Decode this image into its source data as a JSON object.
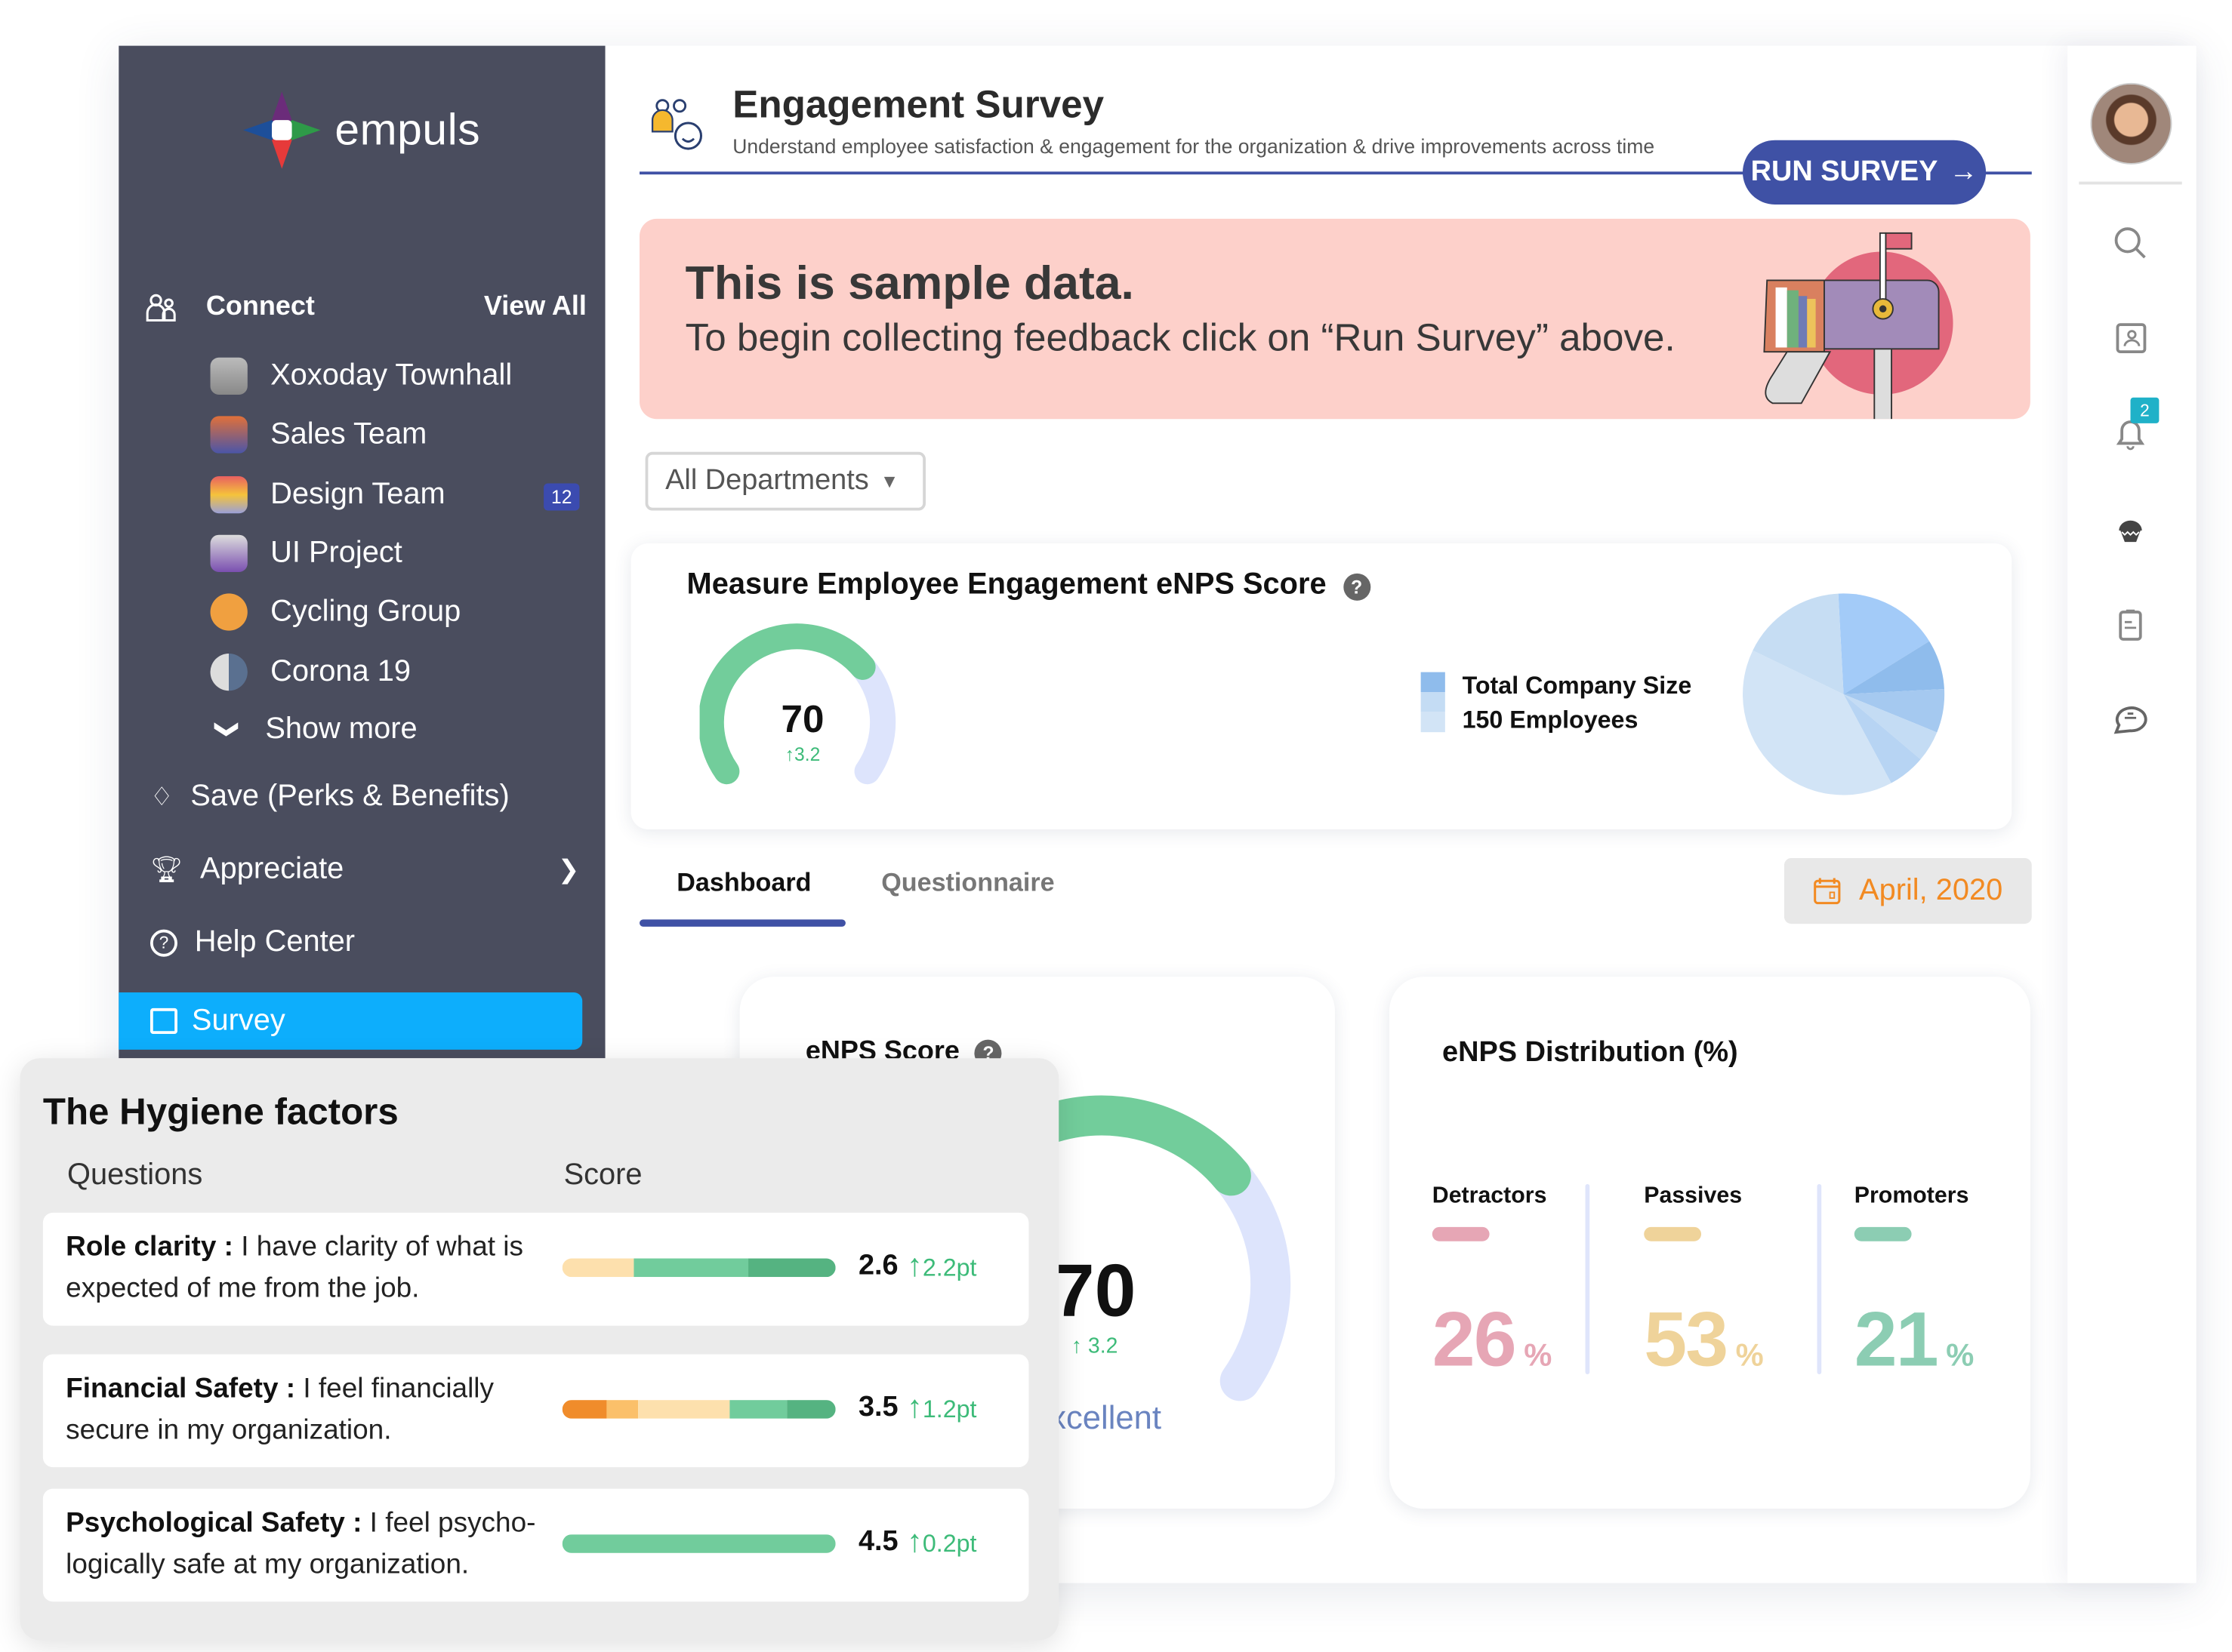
{
  "brand": {
    "name": "empuls"
  },
  "sidebar": {
    "connect_label": "Connect",
    "view_all": "View All",
    "groups": [
      {
        "label": "Xoxoday Townhall",
        "icon": "townhall-icon"
      },
      {
        "label": "Sales Team",
        "icon": "sales-team-icon"
      },
      {
        "label": "Design Team",
        "icon": "design-team-icon",
        "badge": "12"
      },
      {
        "label": "UI Project",
        "icon": "ui-project-icon"
      },
      {
        "label": "Cycling Group",
        "icon": "palette-icon"
      },
      {
        "label": "Corona 19",
        "icon": "corona-icon"
      }
    ],
    "show_more": "Show more",
    "items": [
      {
        "label": "Save (Perks & Benefits)",
        "icon": "tag-icon"
      },
      {
        "label": "Appreciate",
        "icon": "trophy-icon"
      },
      {
        "label": "Help Center",
        "icon": "help-icon"
      },
      {
        "label": "Survey",
        "icon": "survey-icon",
        "active": true
      }
    ]
  },
  "header": {
    "title": "Engagement Survey",
    "subtitle": "Understand employee satisfaction & engagement for the organization & drive improvements across time",
    "run_survey": "RUN SURVEY"
  },
  "banner": {
    "title": "This is sample data.",
    "text": "To begin collecting feedback click on “Run Survey” above."
  },
  "filter": {
    "department": "All Departments"
  },
  "measure": {
    "title": "Measure Employee Engagement eNPS Score",
    "score": "70",
    "delta": "3.2",
    "score_fraction": 0.7,
    "legend_title": "Total Company Size",
    "legend_value": "150 Employees",
    "pie_shares": [
      17,
      8,
      7,
      5,
      6,
      40,
      17
    ],
    "pie_colors": [
      "#a3cbf8",
      "#8fbcec",
      "#a5c9f0",
      "#c4dcf4",
      "#b7d4f3",
      "#d2e4f6",
      "#c6ddf3"
    ]
  },
  "tabs": [
    {
      "label": "Dashboard",
      "active": true
    },
    {
      "label": "Questionnaire",
      "active": false
    }
  ],
  "date": "April, 2020",
  "enps": {
    "title": "eNPS Score",
    "score": "70",
    "delta": "3.2",
    "rating": "Excellent",
    "score_fraction": 0.7
  },
  "distribution": {
    "title": "eNPS Distribution (%)",
    "items": [
      {
        "label": "Detractors",
        "value": "26",
        "unit": "%",
        "color": "#e6a6b5"
      },
      {
        "label": "Passives",
        "value": "53",
        "unit": "%",
        "color": "#efd39a"
      },
      {
        "label": "Promoters",
        "value": "21",
        "unit": "%",
        "color": "#8ccdb3"
      }
    ]
  },
  "hygiene": {
    "title": "The Hygiene factors",
    "col_questions": "Questions",
    "col_score": "Score",
    "rows": [
      {
        "factor": "Role clarity :",
        "text": " I have clarity of what is expected of me from the job.",
        "score": "2.6",
        "delta": "2.2pt",
        "segments": [
          {
            "share": 26,
            "color": "#fde0ad"
          },
          {
            "share": 42,
            "color": "#71cc9c"
          },
          {
            "share": 32,
            "color": "#55b381"
          }
        ]
      },
      {
        "factor": "Financial Safety :",
        "text": " I feel financially secure in my organization.",
        "score": "3.5",
        "delta": "1.2pt",
        "segments": [
          {
            "share": 16,
            "color": "#f08c2b"
          },
          {
            "share": 12,
            "color": "#fbc06a"
          },
          {
            "share": 33,
            "color": "#fde0ad"
          },
          {
            "share": 21,
            "color": "#71cc9c"
          },
          {
            "share": 18,
            "color": "#55b381"
          }
        ]
      },
      {
        "factor": "Psychological Safety :",
        "text": " I feel psycho-logically safe at my organization.",
        "score": "4.5",
        "delta": "0.2pt",
        "segments": [
          {
            "share": 100,
            "color": "#71cc9c"
          }
        ]
      }
    ]
  },
  "rail": {
    "notification_count": "2"
  }
}
